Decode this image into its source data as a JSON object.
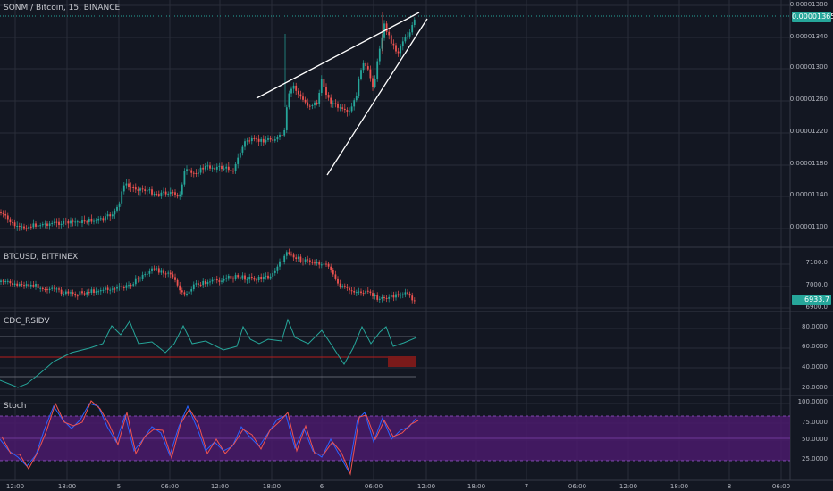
{
  "panes": {
    "main": {
      "title": "SONM / Bitcoin, 15, BINANCE",
      "last_price": "0.00001365",
      "axis": [
        "0.00001380",
        "0.00001340",
        "0.00001300",
        "0.00001260",
        "0.00001220",
        "0.00001180",
        "0.00001140",
        "0.00001100"
      ]
    },
    "btc": {
      "title": "BTCUSD, BITFINEX",
      "last_price": "6933.7",
      "axis": [
        "7100.0",
        "7000.0",
        "6900.0"
      ]
    },
    "rsi": {
      "title": "CDC_RSIDV",
      "axis": [
        "80.0000",
        "60.0000",
        "40.0000",
        "20.0000"
      ]
    },
    "stoch": {
      "title": "Stoch",
      "axis": [
        "100.0000",
        "75.0000",
        "50.0000",
        "25.0000"
      ]
    }
  },
  "time_axis": [
    "12:00",
    "18:00",
    "5",
    "06:00",
    "12:00",
    "18:00",
    "6",
    "06:00",
    "12:00",
    "18:00",
    "7",
    "06:00",
    "12:00",
    "18:00",
    "8",
    "06:00"
  ],
  "colors": {
    "bg": "#131722",
    "up": "#26a69a",
    "down": "#ef5350",
    "grid": "#2a2e39",
    "last": "#26a69a",
    "stoch_band": "#4a1a6b",
    "rsi_fill": "#7a1a1a"
  }
}
